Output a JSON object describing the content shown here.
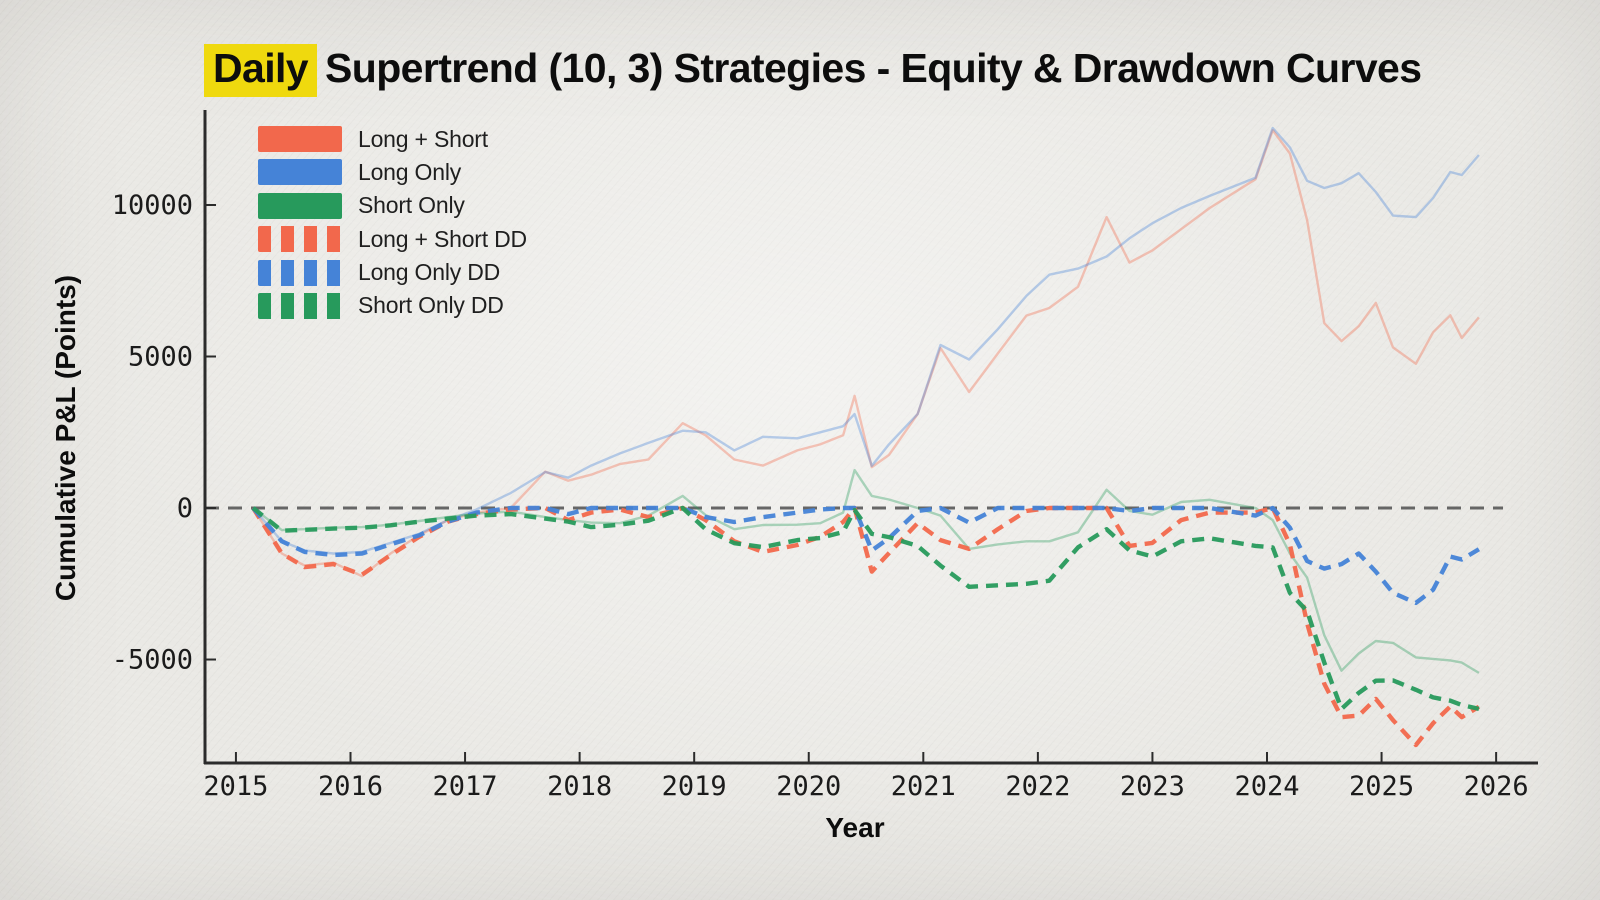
{
  "title": {
    "highlight": "Daily",
    "rest": "Supertrend (10, 3) Strategies - Equity & Drawdown Curves"
  },
  "colors": {
    "coral": "#F2684C",
    "blue": "#4583D7",
    "green": "#279A5C",
    "zero_line": "#585858",
    "axis": "#2b2b2b",
    "background": "#EAE9E5",
    "highlight_yellow": "#EFD90E",
    "text": "#111111"
  },
  "chart_data": {
    "type": "line",
    "title": "Daily Supertrend (10, 3) Strategies - Equity & Drawdown Curves",
    "xlabel": "Year",
    "ylabel": "Cumulative P&L (Points)",
    "x_ticks": [
      2015,
      2016,
      2017,
      2018,
      2019,
      2020,
      2021,
      2022,
      2023,
      2024,
      2025,
      2026
    ],
    "y_ticks": [
      -5000,
      0,
      5000,
      10000
    ],
    "x_range": [
      2014.73,
      2026.06
    ],
    "y_range": [
      -8415,
      12970
    ],
    "grid": false,
    "zero_line": true,
    "legend_position": "upper-left",
    "x": [
      2015.15,
      2015.4,
      2015.6,
      2015.85,
      2016.1,
      2016.35,
      2016.6,
      2016.85,
      2017.1,
      2017.4,
      2017.7,
      2017.9,
      2018.1,
      2018.35,
      2018.6,
      2018.9,
      2019.1,
      2019.35,
      2019.6,
      2019.9,
      2020.1,
      2020.3,
      2020.4,
      2020.55,
      2020.7,
      2020.95,
      2021.15,
      2021.4,
      2021.65,
      2021.9,
      2022.1,
      2022.35,
      2022.6,
      2022.8,
      2023.0,
      2023.25,
      2023.5,
      2023.9,
      2024.05,
      2024.2,
      2024.35,
      2024.5,
      2024.65,
      2024.8,
      2024.95,
      2025.1,
      2025.3,
      2025.45,
      2025.6,
      2025.7,
      2025.85
    ],
    "series": [
      {
        "name": "Long + Short",
        "color": "#F2684C",
        "style": "solid",
        "role": "equity",
        "values": [
          0,
          -1500,
          -1900,
          -1800,
          -2250,
          -1500,
          -900,
          -400,
          -150,
          0,
          1200,
          900,
          1100,
          1450,
          1600,
          2800,
          2400,
          1600,
          1400,
          1900,
          2100,
          2400,
          3700,
          1350,
          1750,
          3100,
          5280,
          3830,
          5100,
          6350,
          6600,
          7300,
          9600,
          8100,
          8500,
          9200,
          9900,
          10850,
          12470,
          11700,
          9500,
          6100,
          5510,
          6000,
          6770,
          5300,
          4760,
          5800,
          6360,
          5610,
          6290
        ]
      },
      {
        "name": "Long Only",
        "color": "#4583D7",
        "style": "solid",
        "role": "equity",
        "values": [
          0,
          -1100,
          -1400,
          -1500,
          -1450,
          -1150,
          -850,
          -400,
          -50,
          500,
          1190,
          1000,
          1400,
          1800,
          2150,
          2550,
          2500,
          1900,
          2350,
          2300,
          2500,
          2700,
          3100,
          1390,
          2100,
          3100,
          5380,
          4900,
          5900,
          7000,
          7700,
          7900,
          8300,
          8900,
          9400,
          9900,
          10300,
          10900,
          12540,
          11900,
          10800,
          10560,
          10720,
          11050,
          10430,
          9650,
          9600,
          10230,
          11090,
          10990,
          11650
        ]
      },
      {
        "name": "Short Only",
        "color": "#279A5C",
        "style": "solid",
        "role": "equity",
        "values": [
          0,
          -730,
          -700,
          -650,
          -630,
          -550,
          -430,
          -300,
          -180,
          -120,
          -300,
          -400,
          -480,
          -500,
          -250,
          400,
          -230,
          -700,
          -560,
          -550,
          -500,
          -150,
          1250,
          400,
          280,
          0,
          -250,
          -1350,
          -1200,
          -1100,
          -1100,
          -800,
          600,
          -100,
          -220,
          200,
          270,
          0,
          -400,
          -1500,
          -2300,
          -4200,
          -5370,
          -4800,
          -4390,
          -4450,
          -4930,
          -4980,
          -5030,
          -5100,
          -5440
        ]
      },
      {
        "name": "Long + Short DD",
        "color": "#F2684C",
        "style": "dashed",
        "role": "drawdown",
        "values": [
          0,
          -1500,
          -1950,
          -1850,
          -2200,
          -1550,
          -950,
          -450,
          -200,
          -50,
          0,
          -400,
          -150,
          -50,
          -300,
          0,
          -400,
          -1100,
          -1450,
          -1220,
          -950,
          -460,
          0,
          -2100,
          -1490,
          -500,
          -1060,
          -1350,
          -700,
          -100,
          0,
          0,
          0,
          -1250,
          -1150,
          -400,
          -150,
          -150,
          0,
          -1200,
          -3800,
          -5800,
          -6900,
          -6850,
          -6300,
          -7000,
          -7820,
          -7100,
          -6550,
          -6900,
          -6560
        ]
      },
      {
        "name": "Long Only DD",
        "color": "#4583D7",
        "style": "dashed",
        "role": "drawdown",
        "values": [
          0,
          -1100,
          -1450,
          -1550,
          -1500,
          -1200,
          -900,
          -450,
          -150,
          0,
          0,
          -200,
          0,
          0,
          0,
          0,
          -300,
          -460,
          -300,
          -150,
          -50,
          0,
          0,
          -1400,
          -1000,
          -100,
          0,
          -480,
          0,
          0,
          0,
          0,
          0,
          -100,
          0,
          0,
          0,
          -250,
          0,
          -650,
          -1750,
          -2000,
          -1850,
          -1500,
          -2100,
          -2800,
          -3130,
          -2700,
          -1600,
          -1700,
          -1360
        ]
      },
      {
        "name": "Short Only DD",
        "color": "#279A5C",
        "style": "dashed",
        "role": "drawdown",
        "values": [
          0,
          -750,
          -720,
          -680,
          -650,
          -570,
          -450,
          -350,
          -250,
          -200,
          -350,
          -450,
          -630,
          -550,
          -420,
          0,
          -700,
          -1160,
          -1290,
          -1060,
          -990,
          -790,
          -70,
          -850,
          -960,
          -1250,
          -1900,
          -2600,
          -2550,
          -2500,
          -2400,
          -1300,
          -700,
          -1400,
          -1600,
          -1100,
          -1000,
          -1250,
          -1300,
          -2800,
          -3400,
          -5100,
          -6630,
          -6100,
          -5700,
          -5690,
          -6000,
          -6250,
          -6360,
          -6500,
          -6630
        ]
      }
    ]
  }
}
